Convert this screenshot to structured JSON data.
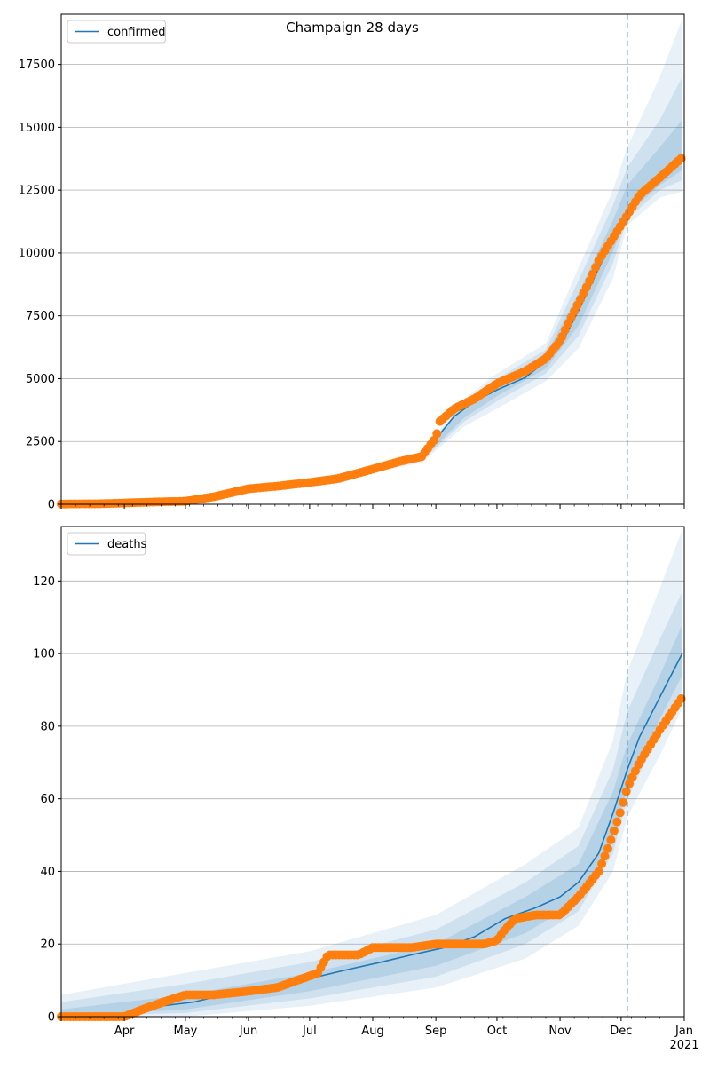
{
  "figure": {
    "title": "Champaign 28 days"
  },
  "chart_data": [
    {
      "type": "line",
      "title": "Champaign 28 days",
      "legend": {
        "placement": "upper-left",
        "entries": [
          "confirmed"
        ]
      },
      "xlabel": "",
      "ylabel": "",
      "x_range": [
        "2020-03-01",
        "2021-01-01"
      ],
      "ylim": [
        0,
        19500
      ],
      "yticks": [
        0,
        2500,
        5000,
        7500,
        10000,
        12500,
        15000,
        17500
      ],
      "ytick_labels": [
        "0",
        "2500",
        "5000",
        "7500",
        "10000",
        "12500",
        "15000",
        "17500"
      ],
      "grid": "horizontal",
      "vline_date": "2020-12-04",
      "series": [
        {
          "name": "confirmed",
          "kind": "model-median-line",
          "color": "#1f77b4",
          "x": [
            "2020-03-01",
            "2020-03-20",
            "2020-04-01",
            "2020-04-15",
            "2020-05-01",
            "2020-05-15",
            "2020-06-01",
            "2020-06-15",
            "2020-07-01",
            "2020-07-15",
            "2020-08-01",
            "2020-08-15",
            "2020-08-25",
            "2020-09-01",
            "2020-09-10",
            "2020-09-20",
            "2020-10-01",
            "2020-10-15",
            "2020-10-25",
            "2020-11-01",
            "2020-11-10",
            "2020-11-20",
            "2020-11-27",
            "2020-12-04",
            "2020-12-10",
            "2020-12-20",
            "2020-12-31"
          ],
          "values": [
            0,
            10,
            40,
            80,
            120,
            300,
            600,
            700,
            850,
            1000,
            1350,
            1650,
            1850,
            2600,
            3500,
            4100,
            4550,
            5050,
            5700,
            6300,
            7700,
            9400,
            10500,
            11750,
            12250,
            12950,
            13800
          ]
        },
        {
          "kind": "observed-points",
          "color": "#ff7f0e",
          "x": [
            "2020-03-01",
            "2020-03-20",
            "2020-04-01",
            "2020-04-15",
            "2020-05-01",
            "2020-05-15",
            "2020-06-01",
            "2020-06-15",
            "2020-07-01",
            "2020-07-15",
            "2020-08-01",
            "2020-08-15",
            "2020-08-25",
            "2020-09-01",
            "2020-09-03",
            "2020-09-10",
            "2020-09-20",
            "2020-10-01",
            "2020-10-15",
            "2020-10-25",
            "2020-11-01",
            "2020-11-05",
            "2020-11-10",
            "2020-11-15",
            "2020-11-20",
            "2020-11-27",
            "2020-12-04",
            "2020-12-10",
            "2020-12-20",
            "2020-12-31"
          ],
          "values": [
            10,
            20,
            50,
            90,
            120,
            300,
            620,
            720,
            870,
            1020,
            1400,
            1720,
            1900,
            2650,
            3300,
            3800,
            4200,
            4800,
            5300,
            5800,
            6500,
            7200,
            8000,
            8800,
            9700,
            10600,
            11500,
            12300,
            13000,
            13800
          ]
        }
      ],
      "confidence_bands": [
        {
          "x": [
            "2020-03-01",
            "2020-05-01",
            "2020-07-01",
            "2020-08-25",
            "2020-09-15",
            "2020-10-01",
            "2020-10-25",
            "2020-11-10",
            "2020-11-27",
            "2020-12-04",
            "2020-12-20",
            "2020-12-31"
          ],
          "lower": [
            0,
            80,
            750,
            1650,
            3100,
            3800,
            4900,
            6200,
            9000,
            11100,
            12200,
            12450
          ],
          "upper": [
            80,
            200,
            950,
            2050,
            4200,
            5200,
            6400,
            9400,
            12500,
            14200,
            17000,
            19300
          ]
        },
        {
          "x": [
            "2020-03-01",
            "2020-05-01",
            "2020-07-01",
            "2020-08-25",
            "2020-09-15",
            "2020-10-01",
            "2020-10-25",
            "2020-11-10",
            "2020-11-27",
            "2020-12-04",
            "2020-12-20",
            "2020-12-31"
          ],
          "lower": [
            0,
            95,
            790,
            1720,
            3300,
            4100,
            5200,
            6700,
            9600,
            11350,
            12500,
            12900
          ],
          "upper": [
            60,
            175,
            910,
            1980,
            4050,
            5000,
            6150,
            8900,
            11900,
            13400,
            15300,
            17000
          ]
        },
        {
          "x": [
            "2020-03-01",
            "2020-05-01",
            "2020-07-01",
            "2020-08-25",
            "2020-09-15",
            "2020-10-01",
            "2020-10-25",
            "2020-11-10",
            "2020-11-27",
            "2020-12-04",
            "2020-12-20",
            "2020-12-31"
          ],
          "lower": [
            0,
            105,
            815,
            1780,
            3450,
            4300,
            5400,
            7100,
            10050,
            11550,
            12700,
            13300
          ],
          "upper": [
            40,
            150,
            880,
            1920,
            3900,
            4800,
            5950,
            8400,
            11300,
            12700,
            14200,
            15300
          ]
        }
      ]
    },
    {
      "type": "line",
      "title": "",
      "legend": {
        "placement": "upper-left",
        "entries": [
          "deaths"
        ]
      },
      "xlabel": "",
      "ylabel": "",
      "x_range": [
        "2020-03-01",
        "2021-01-01"
      ],
      "ylim": [
        0,
        135
      ],
      "yticks": [
        0,
        20,
        40,
        60,
        80,
        100,
        120
      ],
      "ytick_labels": [
        "0",
        "20",
        "40",
        "60",
        "80",
        "100",
        "120"
      ],
      "xticks": [
        "2020-04-01",
        "2020-05-01",
        "2020-06-01",
        "2020-07-01",
        "2020-08-01",
        "2020-09-01",
        "2020-10-01",
        "2020-11-01",
        "2020-12-01",
        "2021-01-01"
      ],
      "xtick_labels": [
        "Apr",
        "May",
        "Jun",
        "Jul",
        "Aug",
        "Sep",
        "Oct",
        "Nov",
        "Dec",
        "Jan\n2021"
      ],
      "grid": "horizontal",
      "vline_date": "2020-12-04",
      "series": [
        {
          "name": "deaths",
          "kind": "model-median-line",
          "color": "#1f77b4",
          "x": [
            "2020-03-01",
            "2020-04-05",
            "2020-04-20",
            "2020-05-05",
            "2020-05-20",
            "2020-06-05",
            "2020-06-20",
            "2020-07-05",
            "2020-07-20",
            "2020-08-05",
            "2020-08-20",
            "2020-09-05",
            "2020-09-20",
            "2020-10-05",
            "2020-10-20",
            "2020-11-01",
            "2020-11-10",
            "2020-11-20",
            "2020-11-27",
            "2020-12-04",
            "2020-12-10",
            "2020-12-20",
            "2020-12-31"
          ],
          "values": [
            0,
            0,
            3,
            4,
            6,
            7,
            9,
            11,
            13,
            15,
            17,
            19,
            22,
            27,
            30,
            33,
            37,
            45,
            56,
            68,
            77,
            88,
            100
          ]
        },
        {
          "kind": "observed-points",
          "color": "#ff7f0e",
          "x": [
            "2020-03-01",
            "2020-04-01",
            "2020-04-10",
            "2020-04-20",
            "2020-05-01",
            "2020-05-15",
            "2020-06-01",
            "2020-06-15",
            "2020-06-25",
            "2020-07-05",
            "2020-07-10",
            "2020-07-25",
            "2020-08-01",
            "2020-08-20",
            "2020-09-01",
            "2020-09-25",
            "2020-10-01",
            "2020-10-05",
            "2020-10-10",
            "2020-10-20",
            "2020-11-01",
            "2020-11-10",
            "2020-11-20",
            "2020-11-25",
            "2020-12-01",
            "2020-12-04",
            "2020-12-10",
            "2020-12-20",
            "2020-12-31"
          ],
          "values": [
            0,
            0,
            2,
            4,
            6,
            6,
            7,
            8,
            10,
            12,
            17,
            17,
            19,
            19,
            20,
            20,
            21,
            24,
            27,
            28,
            28,
            33,
            40,
            47,
            57,
            63,
            70,
            79,
            88
          ]
        }
      ],
      "confidence_bands": [
        {
          "x": [
            "2020-03-01",
            "2020-05-01",
            "2020-07-01",
            "2020-09-01",
            "2020-10-15",
            "2020-11-10",
            "2020-11-27",
            "2020-12-04",
            "2020-12-20",
            "2020-12-31"
          ],
          "lower": [
            0,
            0,
            3,
            8,
            16,
            25,
            40,
            55,
            72,
            85
          ],
          "upper": [
            6,
            12,
            18,
            28,
            42,
            52,
            76,
            95,
            118,
            134
          ]
        },
        {
          "x": [
            "2020-03-01",
            "2020-05-01",
            "2020-07-01",
            "2020-09-01",
            "2020-10-15",
            "2020-11-10",
            "2020-11-27",
            "2020-12-04",
            "2020-12-20",
            "2020-12-31"
          ],
          "lower": [
            0,
            1,
            5,
            11,
            20,
            29,
            45,
            60,
            78,
            90
          ],
          "upper": [
            4,
            9,
            15,
            24,
            37,
            47,
            68,
            84,
            104,
            117
          ]
        },
        {
          "x": [
            "2020-03-01",
            "2020-05-01",
            "2020-07-01",
            "2020-09-01",
            "2020-10-15",
            "2020-11-10",
            "2020-11-27",
            "2020-12-04",
            "2020-12-20",
            "2020-12-31"
          ],
          "lower": [
            0,
            2,
            7,
            14,
            23,
            32,
            49,
            63,
            82,
            94
          ],
          "upper": [
            2,
            6,
            12,
            20,
            33,
            42,
            62,
            75,
            94,
            108
          ]
        }
      ]
    }
  ]
}
